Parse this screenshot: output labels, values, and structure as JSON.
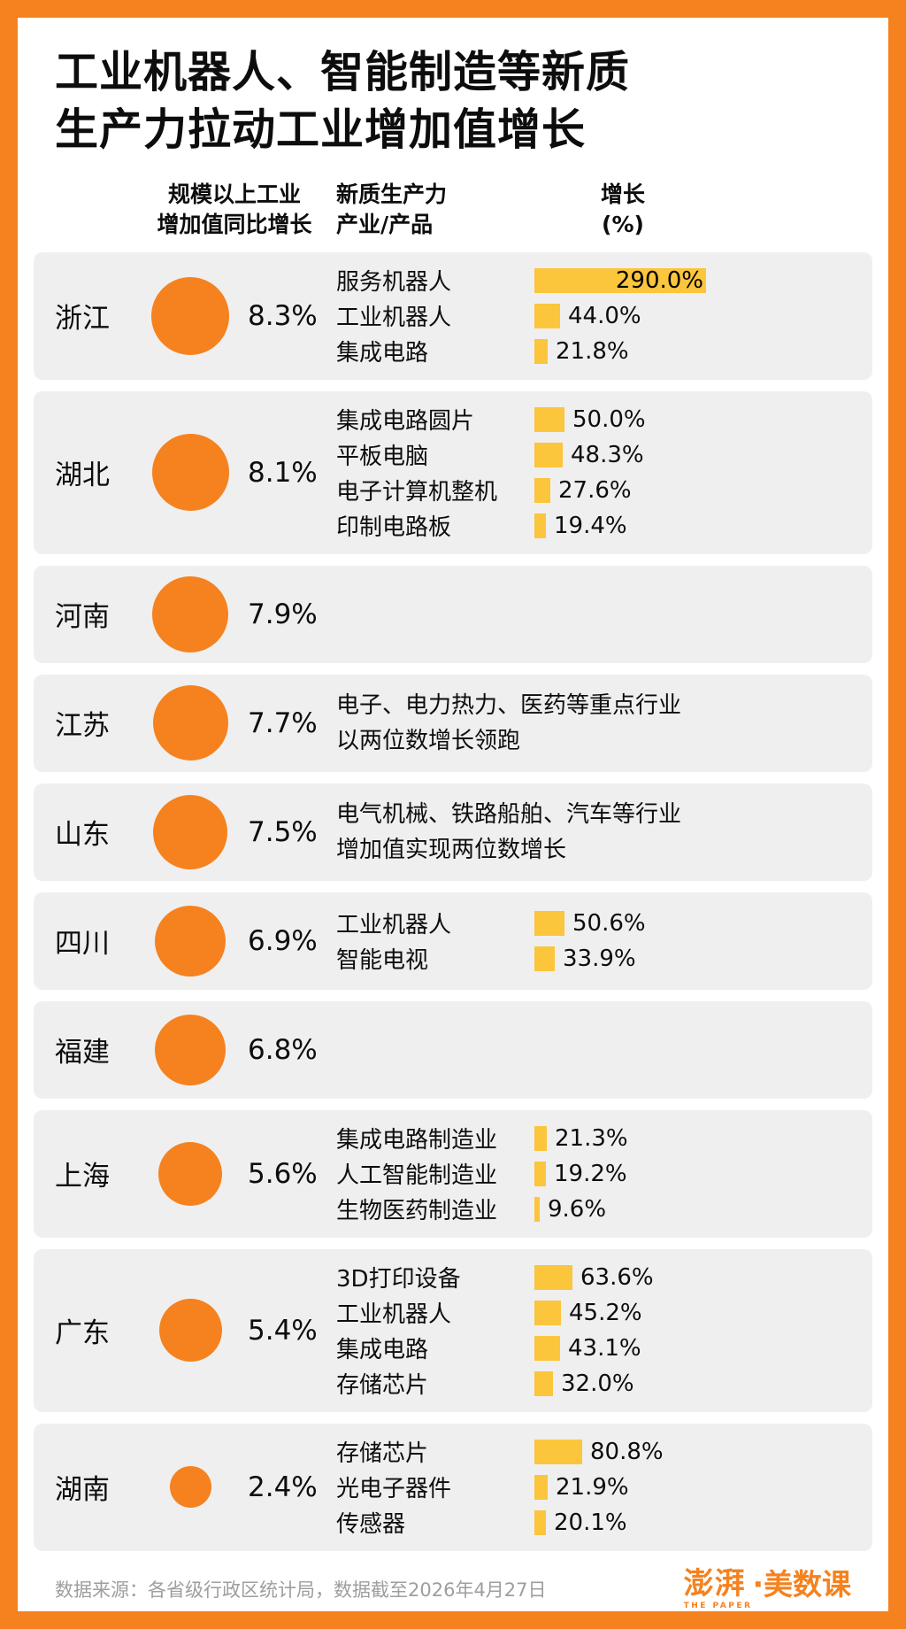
{
  "page": {
    "title_line1": "工业机器人、智能制造等新质",
    "title_line2": "生产力拉动工业增加值增长",
    "footer": "数据来源：各省级行政区统计局，数据截至2026年4月27日",
    "logo": {
      "pengpai": "澎湃",
      "suffix": "·美数课",
      "en": "THE PAPER"
    }
  },
  "columns": {
    "col1_line1": "规模以上工业",
    "col1_line2": "增加值同比增长",
    "col2_line1": "新质生产力",
    "col2_line2": "产业/产品",
    "col3_line1": "增长",
    "col3_line2": "(%)"
  },
  "colors": {
    "orange": "#F5821F",
    "bar_yellow": "#FBC53C",
    "row_bg": "#EFEFEF"
  },
  "chart_data": {
    "type": "table",
    "title": "工业机器人、智能制造等新质生产力拉动工业增加值增长",
    "bubble_metric": "规模以上工业增加值同比增长(%)",
    "bar_metric": "新质生产力产业/产品 增长(%)",
    "rows": [
      {
        "province": "浙江",
        "growth": 8.3,
        "items": [
          {
            "name": "服务机器人",
            "value": 290.0,
            "label_inside": true
          },
          {
            "name": "工业机器人",
            "value": 44.0
          },
          {
            "name": "集成电路",
            "value": 21.8
          }
        ]
      },
      {
        "province": "湖北",
        "growth": 8.1,
        "items": [
          {
            "name": "集成电路圆片",
            "value": 50.0
          },
          {
            "name": "平板电脑",
            "value": 48.3
          },
          {
            "name": "电子计算机整机",
            "value": 27.6
          },
          {
            "name": "印制电路板",
            "value": 19.4
          }
        ]
      },
      {
        "province": "河南",
        "growth": 7.9,
        "items": []
      },
      {
        "province": "江苏",
        "growth": 7.7,
        "note_lines": [
          "电子、电力热力、医药等重点行业",
          "以两位数增长领跑"
        ]
      },
      {
        "province": "山东",
        "growth": 7.5,
        "note_lines": [
          "电气机械、铁路船舶、汽车等行业",
          "增加值实现两位数增长"
        ]
      },
      {
        "province": "四川",
        "growth": 6.9,
        "items": [
          {
            "name": "工业机器人",
            "value": 50.6
          },
          {
            "name": "智能电视",
            "value": 33.9
          }
        ]
      },
      {
        "province": "福建",
        "growth": 6.8,
        "items": []
      },
      {
        "province": "上海",
        "growth": 5.6,
        "items": [
          {
            "name": "集成电路制造业",
            "value": 21.3
          },
          {
            "name": "人工智能制造业",
            "value": 19.2
          },
          {
            "name": "生物医药制造业",
            "value": 9.6
          }
        ]
      },
      {
        "province": "广东",
        "growth": 5.4,
        "items": [
          {
            "name": "3D打印设备",
            "value": 63.6
          },
          {
            "name": "工业机器人",
            "value": 45.2
          },
          {
            "name": "集成电路",
            "value": 43.1
          },
          {
            "name": "存储芯片",
            "value": 32.0
          }
        ]
      },
      {
        "province": "湖南",
        "growth": 2.4,
        "items": [
          {
            "name": "存储芯片",
            "value": 80.8
          },
          {
            "name": "光电子器件",
            "value": 21.9
          },
          {
            "name": "传感器",
            "value": 20.1
          }
        ]
      }
    ]
  }
}
